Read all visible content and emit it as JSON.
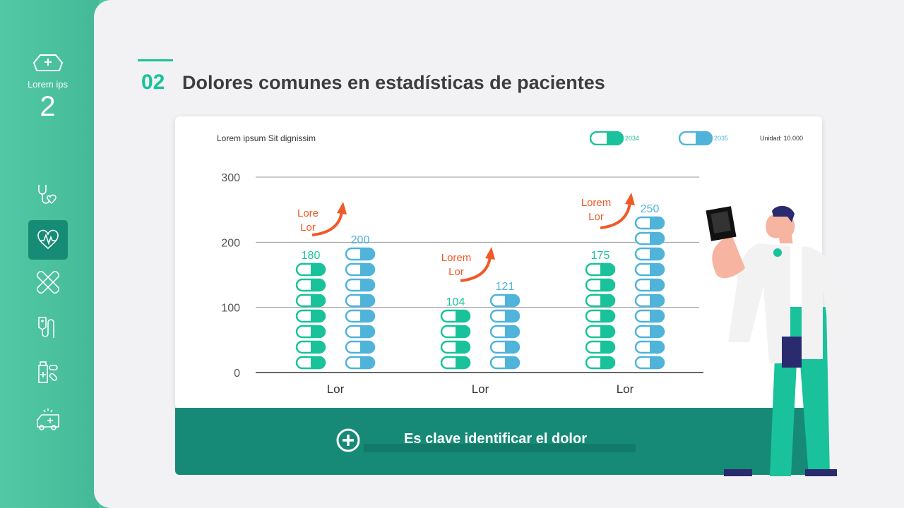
{
  "sidebar": {
    "label": "Lorem ips",
    "number": "2",
    "icons": [
      "nurse-cap-icon",
      "stethoscope-heart-icon",
      "heartbeat-icon",
      "bandage-icon",
      "iv-drip-icon",
      "medicine-icon",
      "ambulance-icon"
    ],
    "active": "heartbeat-icon"
  },
  "header": {
    "number": "02",
    "title": "Dolores comunes en estadísticas de pacientes"
  },
  "card": {
    "title": "Lorem ipsum Sit dignissim",
    "unit": "Unidad: 10.000"
  },
  "banner": {
    "text": "Es clave identificar el dolor"
  },
  "colors": {
    "primary": "#19c29a",
    "secondary": "#4fb3da",
    "dark": "#168a77",
    "arrow": "#f05a28"
  },
  "chart_data": {
    "type": "bar",
    "title": "Lorem ipsum Sit dignissim",
    "categories": [
      "Lor",
      "Lor",
      "Lor"
    ],
    "series": [
      {
        "name": "2034",
        "values": [
          180,
          104,
          175
        ]
      },
      {
        "name": "2035",
        "values": [
          200,
          121,
          250
        ]
      }
    ],
    "yticks": [
      0,
      100,
      200,
      300
    ],
    "ylim": [
      0,
      300
    ],
    "grid": true,
    "legend": "top-right",
    "annotations": [
      "Lore Lor",
      "Lorem Lor",
      "Lorem Lor"
    ]
  }
}
